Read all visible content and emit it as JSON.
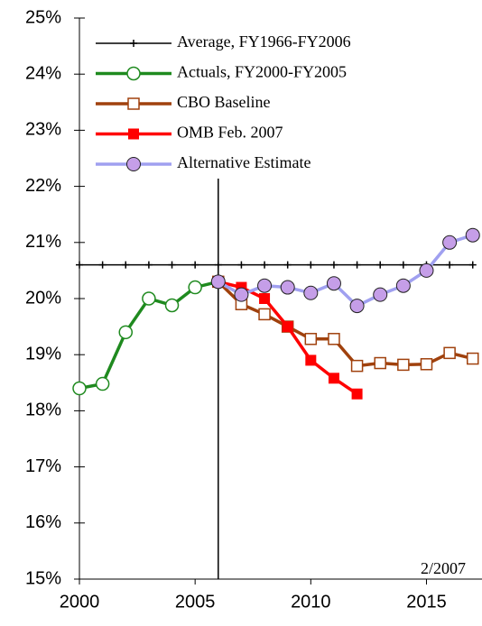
{
  "chart_data": {
    "type": "line",
    "x": [
      2000,
      2001,
      2002,
      2003,
      2004,
      2005,
      2006,
      2007,
      2008,
      2009,
      2010,
      2011,
      2012,
      2013,
      2014,
      2015,
      2016,
      2017
    ],
    "series": [
      {
        "name": "Average, FY1966-FY2006",
        "color": "#000000",
        "marker": "plus",
        "values": [
          20.6,
          20.6,
          20.6,
          20.6,
          20.6,
          20.6,
          20.6,
          20.6,
          20.6,
          20.6,
          20.6,
          20.6,
          20.6,
          20.6,
          20.6,
          20.6,
          20.6,
          20.6
        ]
      },
      {
        "name": "Actuals, FY2000-FY2005",
        "color": "#1f8a1f",
        "marker": "open-circle",
        "values": [
          18.4,
          18.48,
          19.4,
          20.0,
          19.88,
          20.2,
          20.3,
          null,
          null,
          null,
          null,
          null,
          null,
          null,
          null,
          null,
          null,
          null
        ]
      },
      {
        "name": "CBO Baseline",
        "color": "#a0410d",
        "marker": "open-square",
        "values": [
          null,
          null,
          null,
          null,
          null,
          null,
          20.3,
          19.9,
          19.72,
          19.5,
          19.28,
          19.28,
          18.8,
          18.85,
          18.82,
          18.83,
          19.03,
          18.93
        ]
      },
      {
        "name": "OMB Feb. 2007",
        "color": "#ff0000",
        "marker": "square",
        "values": [
          null,
          null,
          null,
          null,
          null,
          null,
          20.3,
          20.2,
          20.0,
          19.5,
          18.9,
          18.58,
          18.3,
          null,
          null,
          null,
          null,
          null
        ]
      },
      {
        "name": "Alternative Estimate",
        "color": "#a0a0f0",
        "marker": "purple-circle",
        "values": [
          null,
          null,
          null,
          null,
          null,
          null,
          20.3,
          20.07,
          20.23,
          20.2,
          20.1,
          20.27,
          19.87,
          20.07,
          20.23,
          20.5,
          21.0,
          21.13
        ]
      }
    ],
    "xlim": [
      2000,
      2017.4
    ],
    "xticks": [
      2000,
      2005,
      2010,
      2015
    ],
    "ylim": [
      15,
      25
    ],
    "yticks": [
      {
        "value": 15,
        "label": "15%"
      },
      {
        "value": 16,
        "label": "16%"
      },
      {
        "value": 17,
        "label": "17%"
      },
      {
        "value": 18,
        "label": "18%"
      },
      {
        "value": 19,
        "label": "19%"
      },
      {
        "value": 20,
        "label": "20%"
      },
      {
        "value": 21,
        "label": "21%"
      },
      {
        "value": 22,
        "label": "22%"
      },
      {
        "value": 23,
        "label": "23%"
      },
      {
        "value": 24,
        "label": "24%"
      },
      {
        "value": 25,
        "label": "25%"
      }
    ],
    "vline": 2006,
    "annotation": "2/2007",
    "grid": false,
    "legend": "top"
  }
}
